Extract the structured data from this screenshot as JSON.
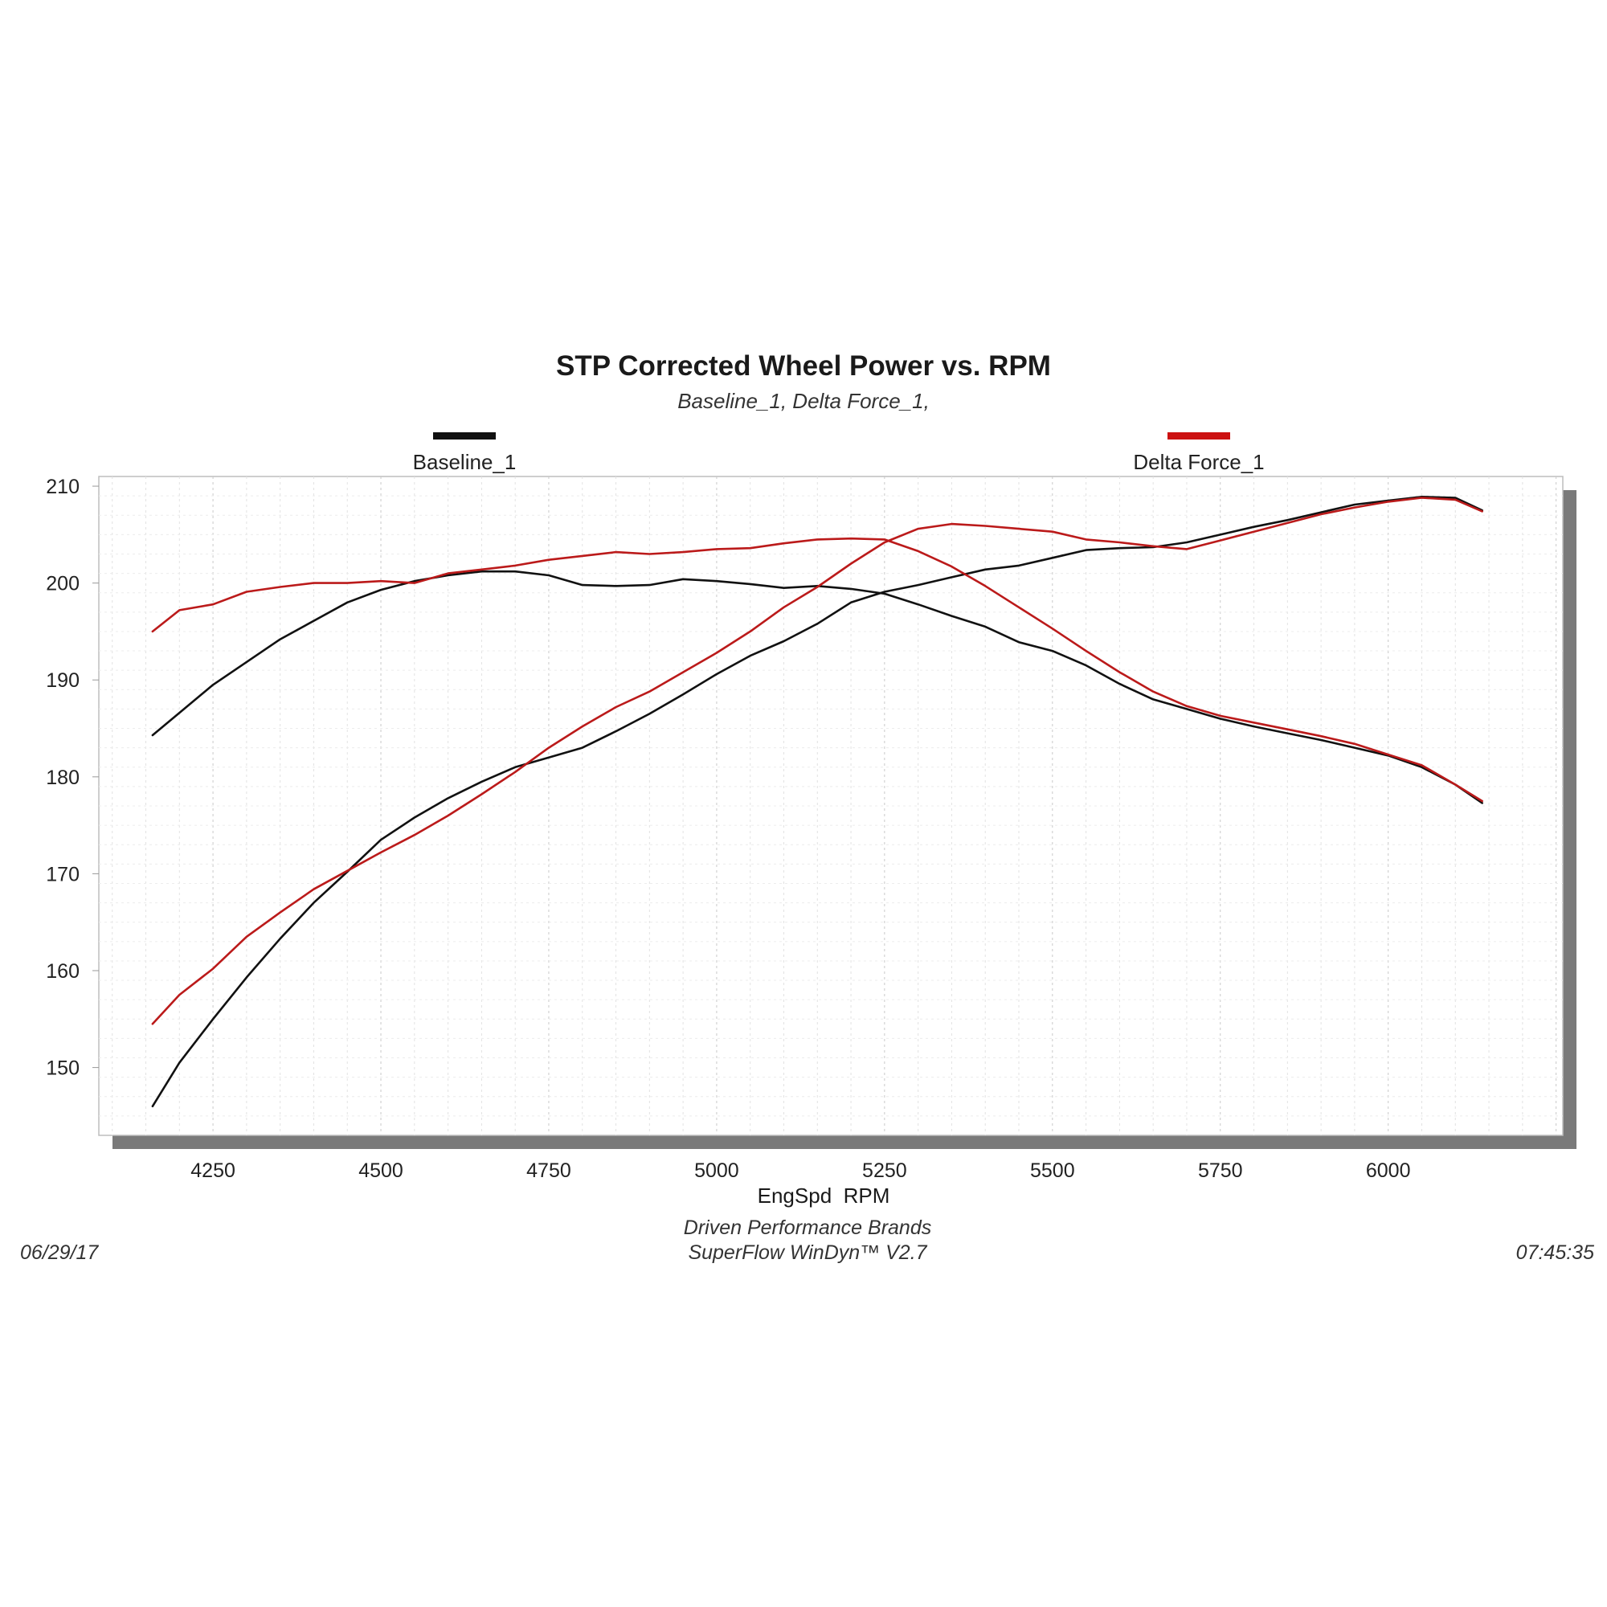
{
  "chart_data": {
    "type": "line",
    "title": "STP Corrected Wheel Power vs. RPM",
    "subtitle": "Baseline_1, Delta Force_1,",
    "xlabel": "EngSpd  RPM",
    "ylabel": "",
    "xlim": [
      4080,
      6260
    ],
    "ylim": [
      143,
      211
    ],
    "x_ticks": [
      4250,
      4500,
      4750,
      5000,
      5250,
      5500,
      5750,
      6000
    ],
    "y_ticks": [
      150,
      160,
      170,
      180,
      190,
      200,
      210
    ],
    "grid": true,
    "legend": [
      {
        "name": "Baseline_1",
        "color": "#111111"
      },
      {
        "name": "Delta Force_1",
        "color": "#cc1111"
      }
    ],
    "series": [
      {
        "name": "Baseline_1 A",
        "legend": "Baseline_1",
        "color": "#111111",
        "x": [
          4160,
          4250,
          4350,
          4450,
          4500,
          4550,
          4600,
          4650,
          4700,
          4750,
          4800,
          4850,
          4900,
          4950,
          5000,
          5050,
          5100,
          5150,
          5200,
          5250,
          5300,
          5350,
          5400,
          5450,
          5500,
          5550,
          5600,
          5650,
          5700,
          5750,
          5800,
          5850,
          5900,
          5950,
          6000,
          6050,
          6100,
          6140
        ],
        "y": [
          184.3,
          189.5,
          194.2,
          198.0,
          199.3,
          200.2,
          200.8,
          201.2,
          201.2,
          200.8,
          199.8,
          199.7,
          199.8,
          200.4,
          200.2,
          199.9,
          199.5,
          199.7,
          199.4,
          198.9,
          197.8,
          196.6,
          195.5,
          193.9,
          193.0,
          191.5,
          189.6,
          188.0,
          187.0,
          186.0,
          185.2,
          184.5,
          183.8,
          183.0,
          182.2,
          181.0,
          179.2,
          177.3
        ]
      },
      {
        "name": "Baseline_1 B",
        "legend": "Baseline_1",
        "color": "#111111",
        "x": [
          4160,
          4200,
          4250,
          4300,
          4350,
          4400,
          4450,
          4500,
          4550,
          4600,
          4650,
          4700,
          4750,
          4800,
          4850,
          4900,
          4950,
          5000,
          5050,
          5100,
          5150,
          5200,
          5250,
          5300,
          5350,
          5400,
          5450,
          5500,
          5550,
          5600,
          5650,
          5700,
          5750,
          5800,
          5850,
          5900,
          5950,
          6000,
          6050,
          6100,
          6140
        ],
        "y": [
          146.0,
          150.5,
          155.0,
          159.3,
          163.3,
          167.0,
          170.2,
          173.5,
          175.8,
          177.8,
          179.5,
          181.0,
          182.0,
          183.0,
          184.7,
          186.5,
          188.5,
          190.6,
          192.5,
          194.0,
          195.8,
          198.0,
          199.1,
          199.8,
          200.6,
          201.4,
          201.8,
          202.6,
          203.4,
          203.6,
          203.7,
          204.2,
          205.0,
          205.8,
          206.5,
          207.3,
          208.1,
          208.5,
          208.9,
          208.8,
          207.5
        ]
      },
      {
        "name": "Delta Force_1 A",
        "legend": "Delta Force_1",
        "color": "#bb1a1a",
        "x": [
          4160,
          4200,
          4250,
          4300,
          4350,
          4400,
          4450,
          4500,
          4550,
          4600,
          4650,
          4700,
          4750,
          4800,
          4850,
          4900,
          4950,
          5000,
          5050,
          5100,
          5150,
          5200,
          5250,
          5300,
          5350,
          5400,
          5450,
          5500,
          5550,
          5600,
          5650,
          5700,
          5750,
          5800,
          5850,
          5900,
          5950,
          6000,
          6050,
          6100,
          6140
        ],
        "y": [
          195.0,
          197.2,
          197.8,
          199.1,
          199.6,
          200.0,
          200.0,
          200.2,
          200.0,
          201.0,
          201.4,
          201.8,
          202.4,
          202.8,
          203.2,
          203.0,
          203.2,
          203.5,
          203.6,
          204.1,
          204.5,
          204.6,
          204.5,
          203.3,
          201.7,
          199.7,
          197.5,
          195.3,
          193.0,
          190.8,
          188.8,
          187.3,
          186.3,
          185.6,
          184.9,
          184.2,
          183.4,
          182.3,
          181.2,
          179.2,
          177.5
        ]
      },
      {
        "name": "Delta Force_1 B",
        "legend": "Delta Force_1",
        "color": "#bb1a1a",
        "x": [
          4160,
          4200,
          4250,
          4300,
          4350,
          4400,
          4450,
          4500,
          4550,
          4600,
          4650,
          4700,
          4750,
          4800,
          4850,
          4900,
          4950,
          5000,
          5050,
          5100,
          5150,
          5200,
          5250,
          5300,
          5350,
          5400,
          5450,
          5500,
          5550,
          5600,
          5650,
          5700,
          5750,
          5800,
          5850,
          5900,
          5950,
          6000,
          6050,
          6100,
          6140
        ],
        "y": [
          154.5,
          157.5,
          160.2,
          163.5,
          166.0,
          168.4,
          170.3,
          172.2,
          174.0,
          176.0,
          178.2,
          180.5,
          183.0,
          185.2,
          187.2,
          188.8,
          190.8,
          192.8,
          195.0,
          197.5,
          199.6,
          202.0,
          204.2,
          205.6,
          206.1,
          205.9,
          205.6,
          205.3,
          204.5,
          204.2,
          203.8,
          203.5,
          204.4,
          205.3,
          206.2,
          207.1,
          207.8,
          208.4,
          208.8,
          208.6,
          207.4
        ]
      }
    ]
  },
  "footer": {
    "date": "06/29/17",
    "company": "Driven Performance Brands",
    "software": "SuperFlow WinDyn™  V2.7",
    "time": "07:45:35"
  }
}
